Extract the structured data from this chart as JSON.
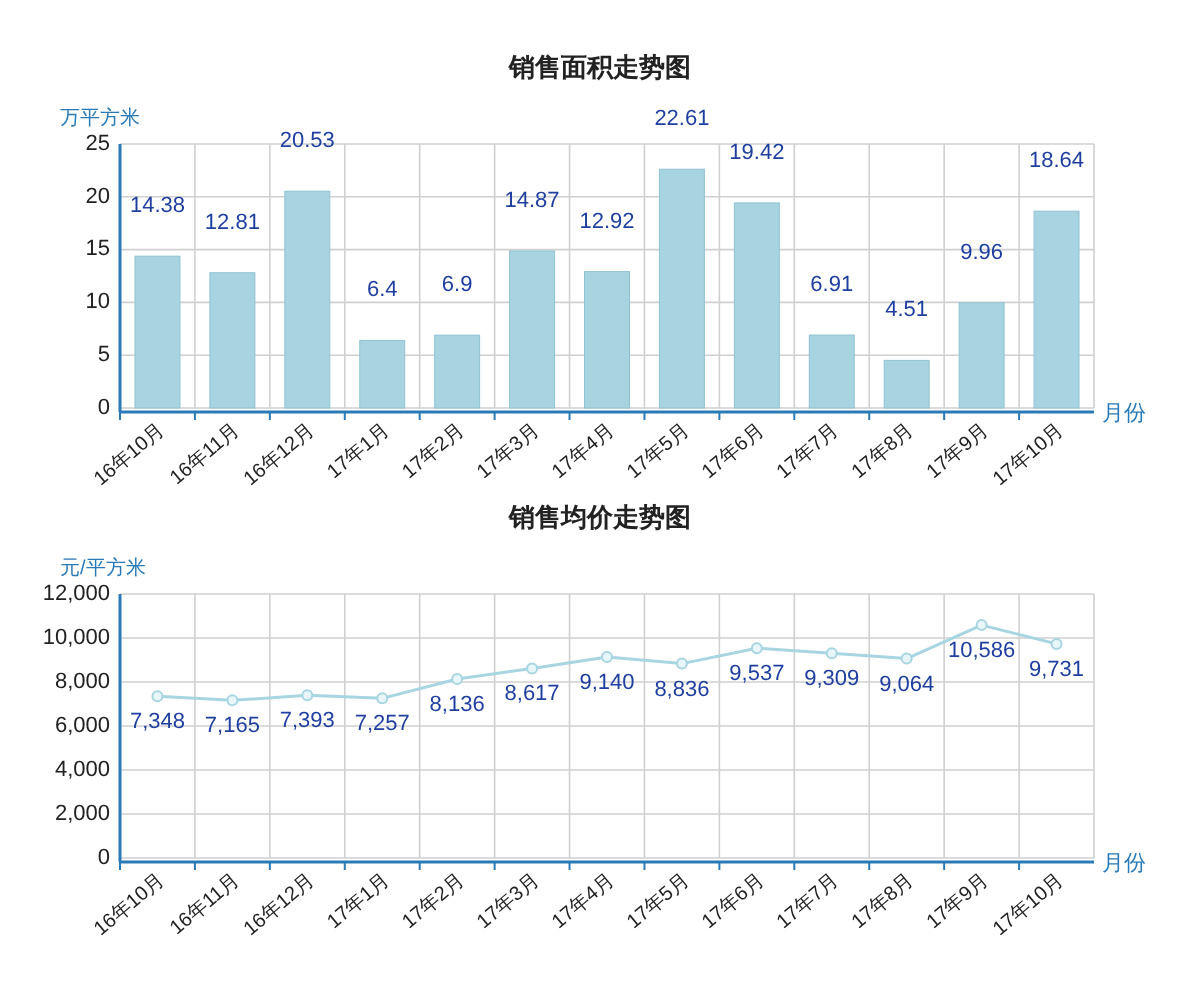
{
  "chart_data": [
    {
      "type": "bar",
      "title": "销售面积走势图",
      "ylabel": "万平方米",
      "xlabel": "月份",
      "categories": [
        "16年10月",
        "16年11月",
        "16年12月",
        "17年1月",
        "17年2月",
        "17年3月",
        "17年4月",
        "17年5月",
        "17年6月",
        "17年7月",
        "17年8月",
        "17年9月",
        "17年10月"
      ],
      "values": [
        14.38,
        12.81,
        20.53,
        6.4,
        6.9,
        14.87,
        12.92,
        22.61,
        19.42,
        6.91,
        4.51,
        9.96,
        18.64
      ],
      "color": "#a8d3e0",
      "ylim": [
        0,
        25
      ],
      "yticks": [
        0,
        5,
        10,
        15,
        20,
        25
      ],
      "grid": true,
      "data_labels": true
    },
    {
      "type": "line",
      "title": "销售均价走势图",
      "ylabel": "元/平方米",
      "xlabel": "月份",
      "categories": [
        "16年10月",
        "16年11月",
        "16年12月",
        "17年1月",
        "17年2月",
        "17年3月",
        "17年4月",
        "17年5月",
        "17年6月",
        "17年7月",
        "17年8月",
        "17年9月",
        "17年10月"
      ],
      "values": [
        7348,
        7165,
        7393,
        7257,
        8136,
        8617,
        9140,
        8836,
        9537,
        9309,
        9064,
        10586,
        9731
      ],
      "color": "#a8d5e2",
      "marker": "circle",
      "ylim": [
        0,
        12000
      ],
      "yticks": [
        0,
        {
          "value": 2000,
          "label": "2,000"
        },
        {
          "value": 4000,
          "label": "4,000"
        },
        {
          "value": 6000,
          "label": "6,000"
        },
        {
          "value": 8000,
          "label": "8,000"
        },
        {
          "value": 10000,
          "label": "10,000"
        },
        {
          "value": 12000,
          "label": "12,000"
        }
      ],
      "grid": true,
      "value_labels": [
        "7,348",
        "7,165",
        "7,393",
        "7,257",
        "8,136",
        "8,617",
        "9,140",
        "8,836",
        "9,537",
        "9,309",
        "9,064",
        "10,586",
        "9,731"
      ]
    }
  ]
}
